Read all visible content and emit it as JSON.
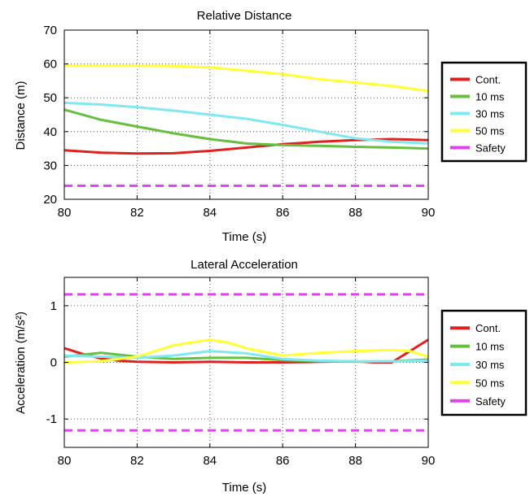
{
  "chart_data": [
    {
      "type": "line",
      "title": "Relative Distance",
      "xlabel": "Time (s)",
      "ylabel": "Distance (m)",
      "xlim": [
        80,
        90
      ],
      "ylim": [
        20,
        70
      ],
      "xticks": [
        80,
        82,
        84,
        86,
        88,
        90
      ],
      "yticks": [
        20,
        30,
        40,
        50,
        60,
        70
      ],
      "grid": true,
      "legend_placement": "right",
      "series": [
        {
          "name": "Cont.",
          "color": "#dd2222",
          "dashed": false,
          "x": [
            80,
            81,
            82,
            83,
            84,
            85,
            86,
            87,
            88,
            89,
            90
          ],
          "y": [
            34.5,
            33.8,
            33.5,
            33.6,
            34.3,
            35.3,
            36.3,
            37.0,
            37.5,
            37.8,
            37.5
          ]
        },
        {
          "name": "10 ms",
          "color": "#66c040",
          "dashed": false,
          "x": [
            80,
            81,
            82,
            83,
            84,
            85,
            86,
            87,
            88,
            89,
            90
          ],
          "y": [
            46.5,
            43.5,
            41.5,
            39.5,
            37.8,
            36.5,
            36.0,
            35.8,
            35.5,
            35.3,
            35.0
          ]
        },
        {
          "name": "30 ms",
          "color": "#80e8f0",
          "dashed": false,
          "x": [
            80,
            81,
            82,
            83,
            84,
            85,
            86,
            87,
            88,
            89,
            90
          ],
          "y": [
            48.5,
            48.0,
            47.2,
            46.2,
            45.0,
            43.8,
            42.0,
            40.0,
            38.0,
            37.0,
            36.5
          ]
        },
        {
          "name": "50 ms",
          "color": "#ffff33",
          "dashed": false,
          "x": [
            80,
            81,
            82,
            83,
            84,
            85,
            86,
            87,
            88,
            89,
            90
          ],
          "y": [
            59.5,
            59.5,
            59.5,
            59.4,
            59.0,
            58.0,
            57.0,
            55.5,
            54.5,
            53.5,
            52.0
          ]
        },
        {
          "name": "Safety",
          "color": "#dd44ee",
          "dashed": true,
          "x": [
            80,
            90
          ],
          "y": [
            24.0,
            24.0
          ]
        }
      ]
    },
    {
      "type": "line",
      "title": "Lateral Acceleration",
      "xlabel": "Time (s)",
      "ylabel": "Acceleration (m/s²)",
      "xlim": [
        80,
        90
      ],
      "ylim": [
        -1.5,
        1.5
      ],
      "xticks": [
        80,
        82,
        84,
        86,
        88,
        90
      ],
      "yticks": [
        -1,
        0,
        1
      ],
      "grid": true,
      "legend_placement": "right",
      "series": [
        {
          "name": "Cont.",
          "color": "#dd2222",
          "dashed": false,
          "x": [
            80,
            80.5,
            81,
            81.5,
            82,
            83,
            84,
            85,
            86,
            87,
            88,
            88.5,
            89,
            89.5,
            90
          ],
          "y": [
            0.25,
            0.15,
            0.07,
            0.03,
            0.01,
            0.0,
            0.01,
            0.0,
            0.0,
            0.01,
            0.02,
            0.0,
            0.0,
            0.2,
            0.4
          ]
        },
        {
          "name": "10 ms",
          "color": "#66c040",
          "dashed": false,
          "x": [
            80,
            81,
            82,
            83,
            84,
            85,
            86,
            87,
            88,
            89,
            90
          ],
          "y": [
            0.1,
            0.17,
            0.1,
            0.06,
            0.08,
            0.08,
            0.04,
            0.02,
            0.01,
            0.02,
            0.05
          ]
        },
        {
          "name": "30 ms",
          "color": "#80e8f0",
          "dashed": false,
          "x": [
            80,
            81,
            82,
            83,
            84,
            85,
            86,
            87,
            88,
            89,
            90
          ],
          "y": [
            0.12,
            0.1,
            0.08,
            0.12,
            0.2,
            0.16,
            0.06,
            0.03,
            0.02,
            0.02,
            0.03
          ]
        },
        {
          "name": "50 ms",
          "color": "#ffff33",
          "dashed": false,
          "x": [
            80,
            81,
            82,
            83,
            84,
            84.5,
            85,
            86,
            87,
            88,
            89,
            89.5,
            90
          ],
          "y": [
            0.0,
            0.02,
            0.1,
            0.3,
            0.4,
            0.35,
            0.25,
            0.12,
            0.17,
            0.2,
            0.22,
            0.2,
            0.1
          ]
        },
        {
          "name": "Safety",
          "color": "#dd44ee",
          "dashed": true,
          "x": [
            80,
            90
          ],
          "y": [
            1.2,
            1.2
          ]
        },
        {
          "name": "Safety",
          "color": "#dd44ee",
          "dashed": true,
          "x": [
            80,
            90
          ],
          "y": [
            -1.2,
            -1.2
          ]
        }
      ]
    }
  ]
}
